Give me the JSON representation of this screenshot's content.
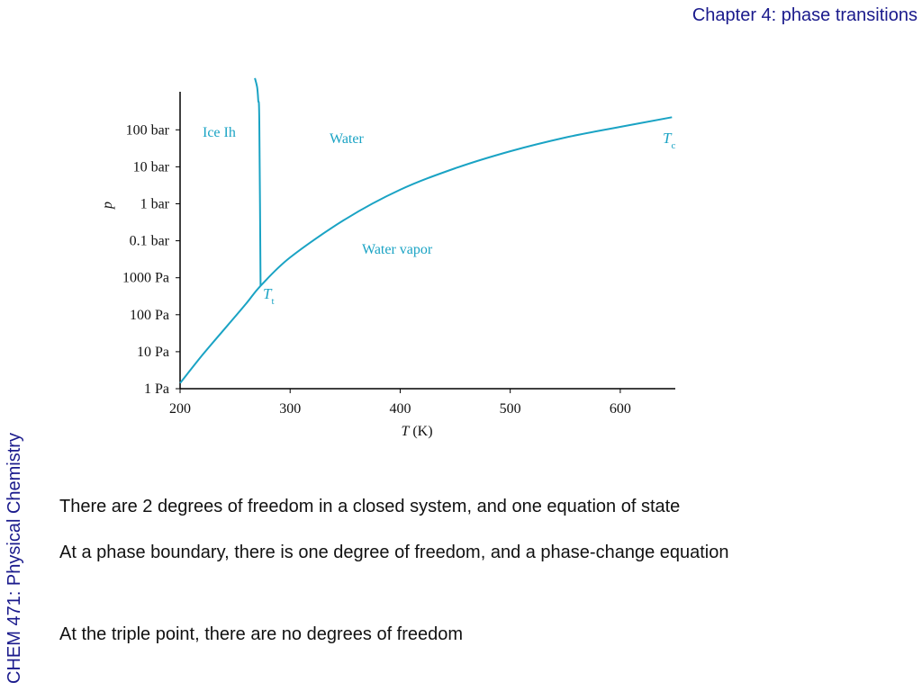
{
  "header": {
    "title": "Chapter 4: phase transitions"
  },
  "sidebar": {
    "course": "CHEM 471: Physical Chemistry"
  },
  "chart_data": {
    "type": "line",
    "title": "",
    "xlabel_italic": "T",
    "xlabel_unit": "(K)",
    "ylabel": "p",
    "xlim": [
      200,
      650
    ],
    "x_ticks": [
      200,
      300,
      400,
      500,
      600
    ],
    "y_ticks": [
      "1 Pa",
      "10 Pa",
      "100 Pa",
      "1000 Pa",
      "0.1 bar",
      "1 bar",
      "10 bar",
      "100 bar"
    ],
    "y_scale": "log",
    "region_labels": [
      "Ice Ih",
      "Water",
      "Water vapor"
    ],
    "point_labels": [
      {
        "name": "Tt",
        "main": "T",
        "sub": "t"
      },
      {
        "name": "Tc",
        "main": "T",
        "sub": "c"
      }
    ],
    "line_color": "#1aa3c4",
    "series": [
      {
        "x_T": [
          200,
          220,
          240,
          260,
          273.16,
          300,
          350,
          400,
          450,
          500,
          550,
          600,
          647
        ],
        "y_log10p": [
          0.15,
          0.9,
          1.6,
          2.3,
          2.78,
          3.55,
          4.58,
          5.38,
          5.96,
          6.42,
          6.79,
          7.08,
          7.34
        ]
      },
      {
        "x_T": [
          273.16,
          272,
          271,
          270,
          268
        ],
        "y_log10p": [
          2.78,
          7.2,
          7.8,
          8.15,
          8.4
        ]
      }
    ]
  },
  "text": {
    "line1": "There are 2 degrees of freedom in a closed system, and one equation of state",
    "line2": "At a phase boundary, there is one degree of freedom, and a phase-change equation",
    "line3": "At the triple point, there are no degrees of freedom"
  }
}
